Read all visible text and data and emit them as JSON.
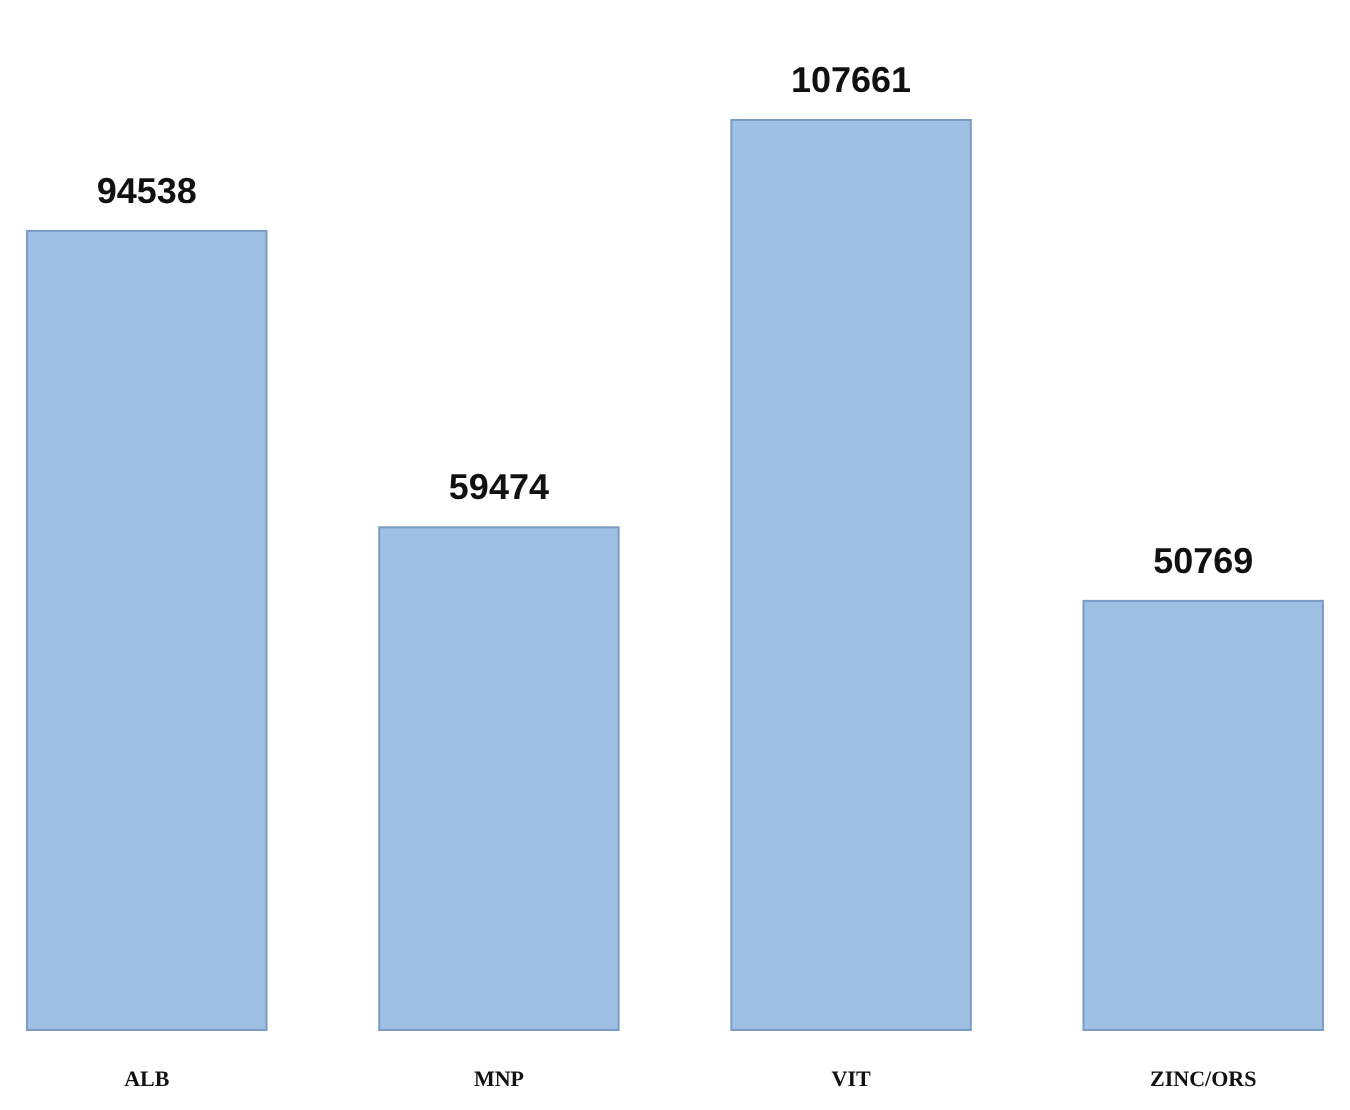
{
  "chart_data": {
    "type": "bar",
    "categories": [
      "ALB",
      "MNP",
      "VIT",
      "ZINC/ORS"
    ],
    "values": [
      94538,
      59474,
      107661,
      50769
    ],
    "color": "#9fbfe3",
    "data_labels": true
  }
}
